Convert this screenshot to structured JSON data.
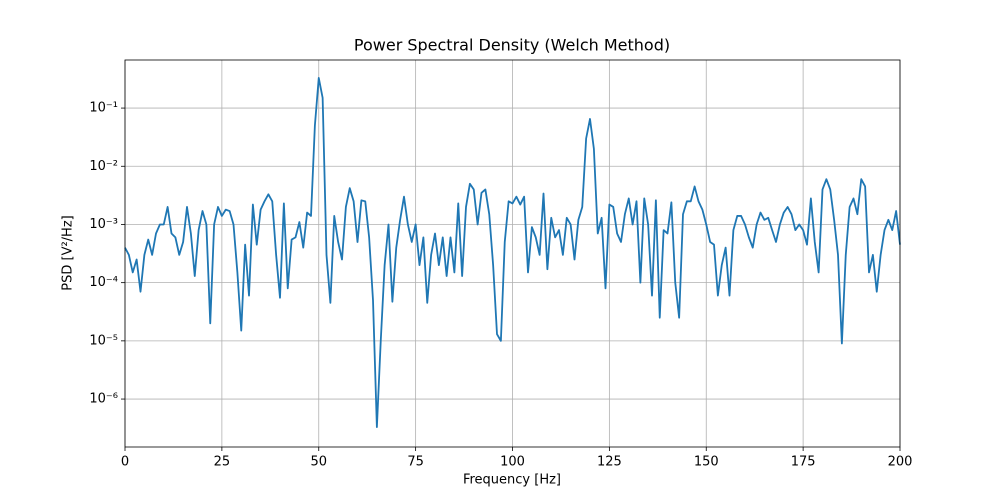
{
  "chart_data": {
    "type": "line",
    "title": "Power Spectral Density (Welch Method)",
    "xlabel": "Frequency [Hz]",
    "ylabel": "PSD [V²/Hz]",
    "color": "#1f77b4",
    "yscale": "log",
    "grid": true,
    "xlim": [
      0,
      200
    ],
    "xticks": [
      0,
      25,
      50,
      75,
      100,
      125,
      150,
      175,
      200
    ],
    "ylim": [
      1.5e-07,
      0.67
    ],
    "yticks": [
      {
        "value": 1e-06,
        "label": "10⁻⁶"
      },
      {
        "value": 1e-05,
        "label": "10⁻⁵"
      },
      {
        "value": 0.0001,
        "label": "10⁻⁴"
      },
      {
        "value": 0.001,
        "label": "10⁻³"
      },
      {
        "value": 0.01,
        "label": "10⁻²"
      },
      {
        "value": 0.1,
        "label": "10⁻¹"
      }
    ],
    "x": [
      0,
      1,
      2,
      3,
      4,
      5,
      6,
      7,
      8,
      9,
      10,
      11,
      12,
      13,
      14,
      15,
      16,
      17,
      18,
      19,
      20,
      21,
      22,
      23,
      24,
      25,
      26,
      27,
      28,
      29,
      30,
      31,
      32,
      33,
      34,
      35,
      36,
      37,
      38,
      39,
      40,
      41,
      42,
      43,
      44,
      45,
      46,
      47,
      48,
      49,
      50,
      51,
      52,
      53,
      54,
      55,
      56,
      57,
      58,
      59,
      60,
      61,
      62,
      63,
      64,
      65,
      66,
      67,
      68,
      69,
      70,
      71,
      72,
      73,
      74,
      75,
      76,
      77,
      78,
      79,
      80,
      81,
      82,
      83,
      84,
      85,
      86,
      87,
      88,
      89,
      90,
      91,
      92,
      93,
      94,
      95,
      96,
      97,
      98,
      99,
      100,
      101,
      102,
      103,
      104,
      105,
      106,
      107,
      108,
      109,
      110,
      111,
      112,
      113,
      114,
      115,
      116,
      117,
      118,
      119,
      120,
      121,
      122,
      123,
      124,
      125,
      126,
      127,
      128,
      129,
      130,
      131,
      132,
      133,
      134,
      135,
      136,
      137,
      138,
      139,
      140,
      141,
      142,
      143,
      144,
      145,
      146,
      147,
      148,
      149,
      150,
      151,
      152,
      153,
      154,
      155,
      156,
      157,
      158,
      159,
      160,
      161,
      162,
      163,
      164,
      165,
      166,
      167,
      168,
      169,
      170,
      171,
      172,
      173,
      174,
      175,
      176,
      177,
      178,
      179,
      180,
      181,
      182,
      183,
      184,
      185,
      186,
      187,
      188,
      189,
      190,
      191,
      192,
      193,
      194,
      195,
      196,
      197,
      198,
      199,
      200
    ],
    "values": [
      0.0004,
      0.0003,
      0.00015,
      0.00025,
      7e-05,
      0.0003,
      0.00055,
      0.0003,
      0.0007,
      0.001,
      0.001,
      0.002,
      0.0007,
      0.0006,
      0.0003,
      0.0005,
      0.002,
      0.0007,
      0.00013,
      0.0008,
      0.0017,
      0.001,
      2e-05,
      0.001,
      0.002,
      0.0014,
      0.0018,
      0.0017,
      0.001,
      0.00015,
      1.5e-05,
      0.00045,
      6e-05,
      0.0022,
      0.00045,
      0.0018,
      0.0025,
      0.0033,
      0.0025,
      0.0003,
      5.5e-05,
      0.0023,
      8e-05,
      0.00055,
      0.0006,
      0.0011,
      0.0004,
      0.0016,
      0.0014,
      0.05,
      0.33,
      0.15,
      0.0003,
      4.5e-05,
      0.0014,
      0.0005,
      0.00025,
      0.002,
      0.0042,
      0.0025,
      0.0005,
      0.0026,
      0.0025,
      0.0006,
      5e-05,
      3.3e-07,
      1e-05,
      0.0002,
      0.001,
      4.7e-05,
      0.0004,
      0.0012,
      0.003,
      0.001,
      0.0005,
      0.001,
      0.0002,
      0.0006,
      4.5e-05,
      0.0003,
      0.0007,
      0.0002,
      0.0006,
      0.00013,
      0.0006,
      0.00015,
      0.0023,
      0.00013,
      0.002,
      0.005,
      0.004,
      0.001,
      0.0035,
      0.004,
      0.0015,
      0.0002,
      1.3e-05,
      1e-05,
      0.0005,
      0.0025,
      0.0023,
      0.003,
      0.0022,
      0.003,
      0.00015,
      0.0009,
      0.0006,
      0.0003,
      0.0034,
      0.00017,
      0.0013,
      0.0006,
      0.0008,
      0.0003,
      0.0013,
      0.001,
      0.00025,
      0.0012,
      0.002,
      0.03,
      0.065,
      0.02,
      0.0007,
      0.0013,
      8e-05,
      0.0022,
      0.002,
      0.0007,
      0.0005,
      0.0015,
      0.0028,
      0.001,
      0.0025,
      0.0001,
      0.0028,
      0.001,
      6e-05,
      0.0026,
      2.5e-05,
      0.0008,
      0.0007,
      0.0024,
      0.0001,
      2.5e-05,
      0.0015,
      0.0025,
      0.0025,
      0.0045,
      0.0025,
      0.0018,
      0.001,
      0.0005,
      0.00045,
      6e-05,
      0.0002,
      0.0004,
      6e-05,
      0.0008,
      0.0014,
      0.0014,
      0.001,
      0.0006,
      0.0004,
      0.001,
      0.0016,
      0.0012,
      0.0013,
      0.0008,
      0.0005,
      0.001,
      0.0016,
      0.002,
      0.0015,
      0.0008,
      0.001,
      0.0008,
      0.00045,
      0.0028,
      0.0005,
      0.00015,
      0.004,
      0.006,
      0.004,
      0.0012,
      0.0003,
      9e-06,
      0.0003,
      0.002,
      0.0028,
      0.0015,
      0.006,
      0.0045,
      0.00015,
      0.0003,
      7e-05,
      0.0003,
      0.0008,
      0.0012,
      0.0008,
      0.0017,
      0.00045
    ]
  }
}
